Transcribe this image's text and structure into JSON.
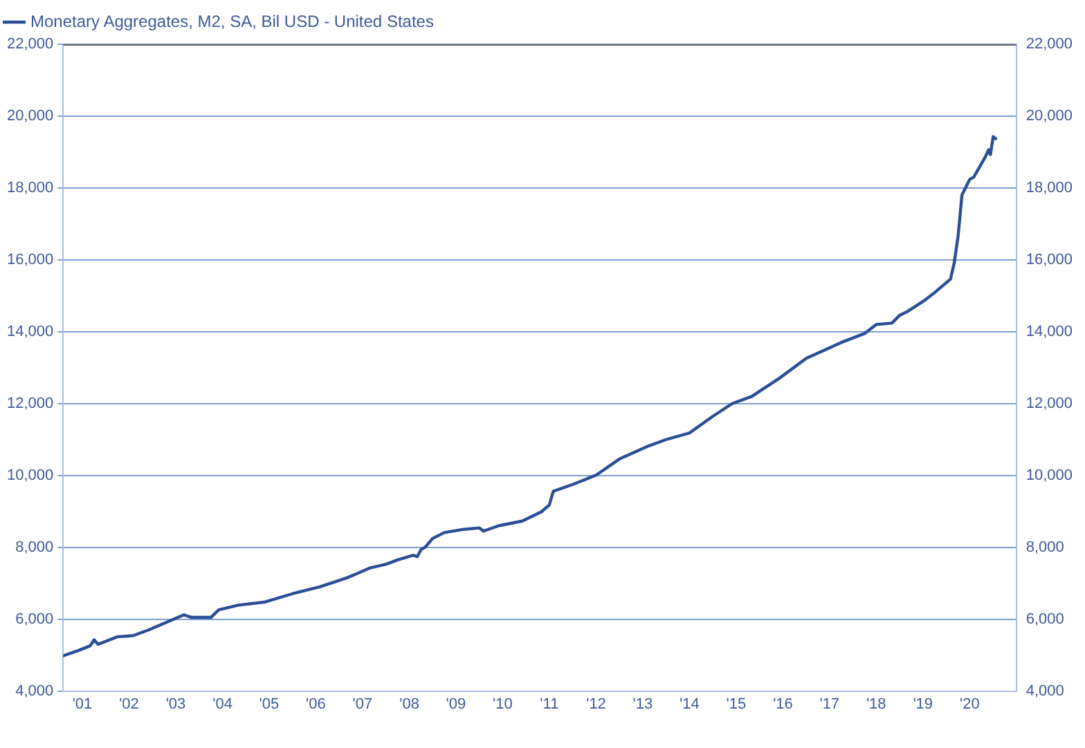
{
  "chart_data": {
    "type": "line",
    "legend": "top left",
    "grid": "y",
    "marker": "none",
    "line_style": "solid",
    "x": [
      "2001-02",
      "2001-06",
      "2001-09",
      "2001-10",
      "2001-11",
      "2002-04",
      "2002-08",
      "2002-12",
      "2003-05",
      "2003-09",
      "2003-11",
      "2004-04",
      "2004-06",
      "2004-11",
      "2005-06",
      "2006-01",
      "2006-08",
      "2007-03",
      "2007-09",
      "2008-01",
      "2008-04",
      "2008-08",
      "2008-09",
      "2008-10",
      "2008-11",
      "2009-01",
      "2009-04",
      "2009-09",
      "2010-01",
      "2010-02",
      "2010-06",
      "2010-12",
      "2011-05",
      "2011-07",
      "2011-08",
      "2012-01",
      "2012-07",
      "2013-01",
      "2013-08",
      "2014-01",
      "2014-07",
      "2015-01",
      "2015-06",
      "2015-11",
      "2016-06",
      "2017-01",
      "2017-10",
      "2018-04",
      "2018-07",
      "2018-11",
      "2019-01",
      "2019-03",
      "2019-07",
      "2019-10",
      "2020-02",
      "2020-03",
      "2020-04",
      "2020-05",
      "2020-07",
      "2020-08",
      "2020-09",
      "2020-11",
      "2020-11-25",
      "2020-12-10",
      "2021-01-01",
      "2021-01-20"
    ],
    "series": [
      {
        "name": "Monetary Aggregates, M2, SA, Bil USD - United States",
        "color": "#2a4f97",
        "values": [
          4980,
          5130,
          5260,
          5425,
          5300,
          5510,
          5540,
          5700,
          5930,
          6120,
          6050,
          6050,
          6260,
          6390,
          6480,
          6710,
          6900,
          7150,
          7430,
          7530,
          7650,
          7780,
          7740,
          7940,
          8000,
          8250,
          8410,
          8500,
          8540,
          8450,
          8600,
          8730,
          8990,
          9180,
          9560,
          9750,
          10010,
          10460,
          10800,
          11000,
          11180,
          11650,
          12000,
          12200,
          12700,
          13260,
          13700,
          13950,
          14200,
          14240,
          14460,
          14560,
          14840,
          15090,
          15460,
          15900,
          16660,
          17800,
          18240,
          18300,
          18490,
          18870,
          19060,
          18930,
          19430,
          19370
        ]
      }
    ],
    "xlim": [
      "2001-02",
      "2021-07"
    ],
    "xticks": [
      {
        "value": "2001-07-01",
        "label": "'01"
      },
      {
        "value": "2002-07-01",
        "label": "'02"
      },
      {
        "value": "2003-07-01",
        "label": "'03"
      },
      {
        "value": "2004-07-01",
        "label": "'04"
      },
      {
        "value": "2005-07-01",
        "label": "'05"
      },
      {
        "value": "2006-07-01",
        "label": "'06"
      },
      {
        "value": "2007-07-01",
        "label": "'07"
      },
      {
        "value": "2008-07-01",
        "label": "'08"
      },
      {
        "value": "2009-07-01",
        "label": "'09"
      },
      {
        "value": "2010-07-01",
        "label": "'10"
      },
      {
        "value": "2011-07-01",
        "label": "'11"
      },
      {
        "value": "2012-07-01",
        "label": "'12"
      },
      {
        "value": "2013-07-01",
        "label": "'13"
      },
      {
        "value": "2014-07-01",
        "label": "'14"
      },
      {
        "value": "2015-07-01",
        "label": "'15"
      },
      {
        "value": "2016-07-01",
        "label": "'16"
      },
      {
        "value": "2017-07-01",
        "label": "'17"
      },
      {
        "value": "2018-07-01",
        "label": "'18"
      },
      {
        "value": "2019-07-01",
        "label": "'19"
      },
      {
        "value": "2020-07-01",
        "label": "'20"
      }
    ],
    "ylim": [
      4000,
      22000
    ],
    "yticks": [
      {
        "value": 4000,
        "label": "4,000"
      },
      {
        "value": 6000,
        "label": "6,000"
      },
      {
        "value": 8000,
        "label": "8,000"
      },
      {
        "value": 10000,
        "label": "10,000"
      },
      {
        "value": 12000,
        "label": "12,000"
      },
      {
        "value": 14000,
        "label": "14,000"
      },
      {
        "value": 16000,
        "label": "16,000"
      },
      {
        "value": 18000,
        "label": "18,000"
      },
      {
        "value": 20000,
        "label": "20,000"
      },
      {
        "value": 22000,
        "label": "22,000"
      }
    ],
    "y2lim": [
      4000,
      22000
    ],
    "y2ticks": [
      {
        "value": 4000,
        "label": "4,000"
      },
      {
        "value": 6000,
        "label": "6,000"
      },
      {
        "value": 8000,
        "label": "8,000"
      },
      {
        "value": 10000,
        "label": "10,000"
      },
      {
        "value": 12000,
        "label": "12,000"
      },
      {
        "value": 14000,
        "label": "14,000"
      },
      {
        "value": 16000,
        "label": "16,000"
      },
      {
        "value": 18000,
        "label": "18,000"
      },
      {
        "value": 20000,
        "label": "20,000"
      },
      {
        "value": 22000,
        "label": "22,000"
      }
    ]
  }
}
